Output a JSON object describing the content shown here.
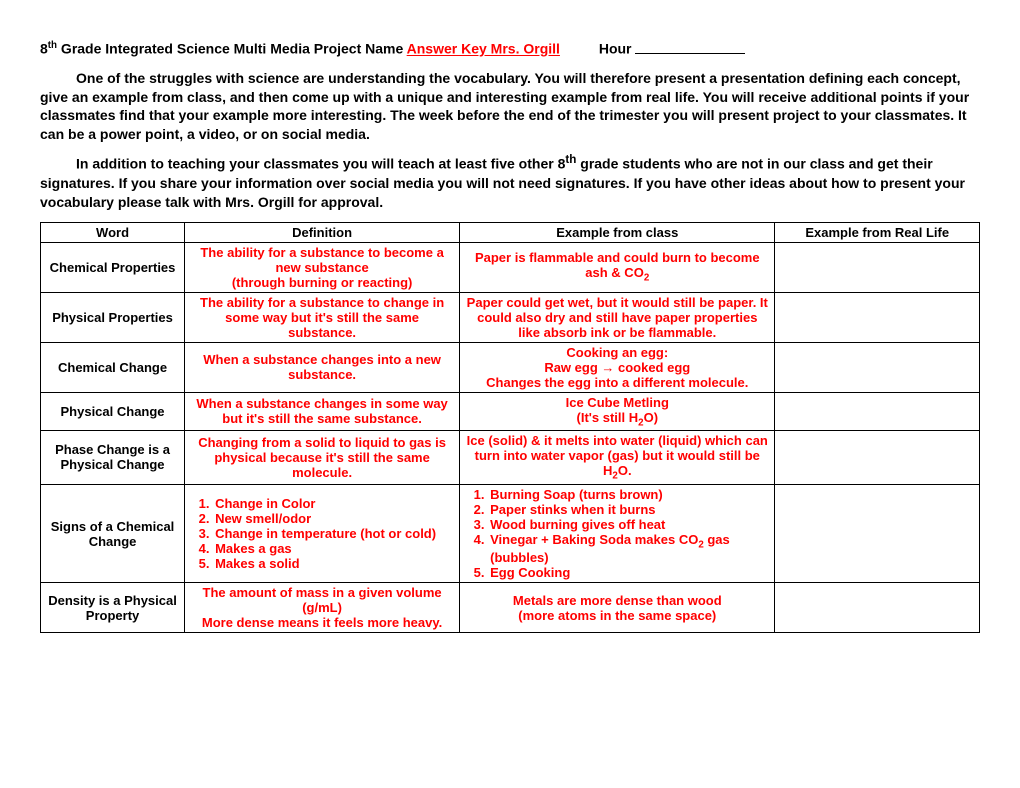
{
  "header": {
    "grade_prefix": "8",
    "grade_sup": "th",
    "title_rest": " Grade Integrated Science Multi Media Project   Name  ",
    "answer_key": "Answer Key Mrs. Orgill",
    "hour_label": "Hour"
  },
  "para1a": "One of the struggles with science are understanding the vocabulary.  You will therefore present a presentation defining each concept, give an example from class, and then come up with a unique and interesting example from real life.  You will receive additional points if your classmates find that your example more interesting.  The week before the end of the trimester you will present project to your classmates.    It can be a power point, a video, or on social media.",
  "para2_pre": "In addition to teaching your classmates you will teach at least five other 8",
  "para2_sup": "th",
  "para2_post": " grade students who are not in our class and get their signatures.    If you share your information over social media you will not need signatures.  If you have other ideas about how to present your vocabulary please talk with Mrs. Orgill for approval.",
  "columns": {
    "word": "Word",
    "definition": "Definition",
    "example_class": "Example from class",
    "example_life": "Example from Real Life"
  },
  "rows": [
    {
      "word": "Chemical Properties",
      "definition_html": "The ability for a substance to become a new substance<br>(through burning or reacting)",
      "example_html": "Paper is flammable and could burn to become ash & CO<sub>2</sub>"
    },
    {
      "word": "Physical Properties",
      "definition_html": "The ability for a substance to change in some way but it's still the same substance.",
      "example_html": "Paper could get wet, but it would still be paper. It could also dry and still have paper properties like absorb ink or be flammable."
    },
    {
      "word": "Chemical Change",
      "definition_html": "When a substance changes into a new substance.",
      "example_html": "Cooking an egg:<br>Raw egg &rarr; cooked egg<br>Changes the egg into a different molecule."
    },
    {
      "word": "Physical Change",
      "definition_html": "When a substance changes in some way but it's still the same substance.",
      "example_html": "Ice Cube Metling<br>(It's still H<sub>2</sub>O)"
    },
    {
      "word": "Phase Change is a Physical Change",
      "definition_html": "Changing from a solid to liquid to gas is physical because it's still the same molecule.",
      "example_html": "Ice (solid) & it melts into water (liquid) which can turn into water vapor (gas) but it would still be H<sub>2</sub>O."
    },
    {
      "word": "Signs of a Chemical Change",
      "definition_list": [
        "Change in Color",
        "New smell/odor",
        "Change in temperature (hot or cold)",
        "Makes a gas",
        "Makes a solid"
      ],
      "example_list": [
        "Burning Soap (turns brown)",
        "Paper stinks when it burns",
        "Wood burning gives off heat",
        "Vinegar + Baking Soda makes CO<sub>2</sub> gas (bubbles)",
        "Egg Cooking"
      ]
    },
    {
      "word": "Density is a Physical Property",
      "definition_html": "The amount of mass in a given volume (g/mL)<br>More dense means it feels more heavy.",
      "example_html": "Metals are more dense than wood<br>(more atoms in the same space)"
    }
  ]
}
